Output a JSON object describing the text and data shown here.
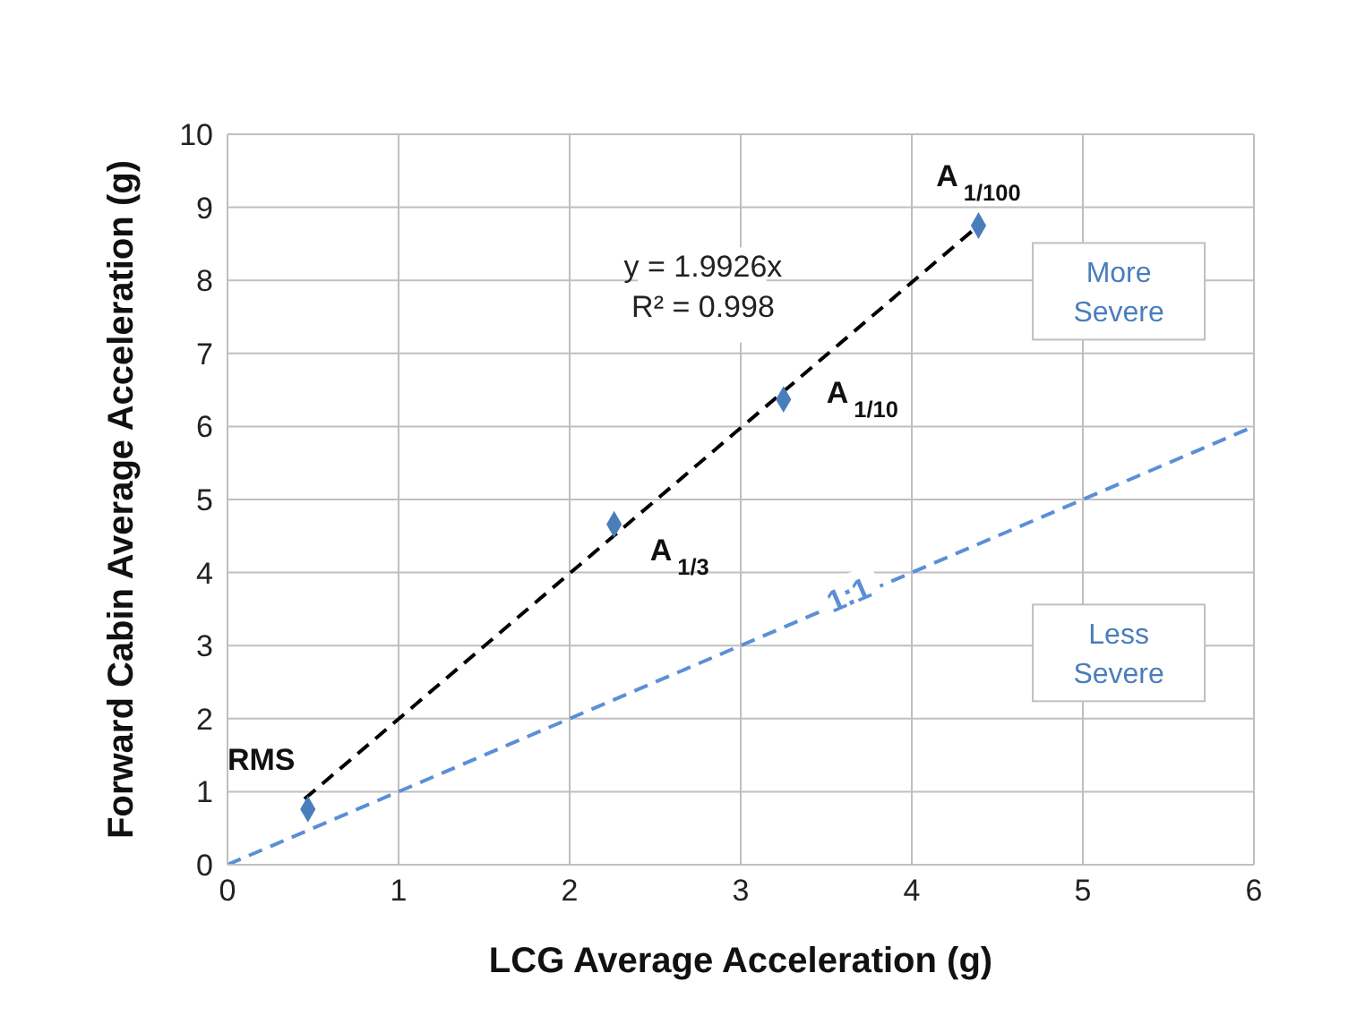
{
  "chart_data": {
    "type": "scatter",
    "xlabel": "LCG Average Acceleration (g)",
    "ylabel": "Forward Cabin Average Acceleration (g)",
    "xlim": [
      0,
      6
    ],
    "xticks": [
      0,
      1,
      2,
      3,
      4,
      5,
      6
    ],
    "ylim": [
      0,
      10
    ],
    "yticks": [
      0,
      1,
      2,
      3,
      4,
      5,
      6,
      7,
      8,
      9,
      10
    ],
    "grid": true,
    "legend": false,
    "marker": "diamond",
    "series": [
      {
        "color": "#4a7ebb",
        "x": [
          0.47,
          2.26,
          3.25,
          4.39
        ],
        "values": [
          0.76,
          4.66,
          6.37,
          8.75
        ]
      },
      {
        "type": "line",
        "color": "#000000",
        "line_style": "dashed",
        "marker": "none",
        "x": [
          0.45,
          4.4
        ],
        "values": [
          0.9,
          8.77
        ]
      },
      {
        "type": "line",
        "color": "#5b8fd6",
        "line_style": "dashed",
        "marker": "none",
        "x": [
          0,
          6
        ],
        "values": [
          0,
          6
        ]
      }
    ],
    "annotations": [
      {
        "text": "RMS",
        "x": 0.47,
        "y": 0.76
      },
      {
        "text": "A$_{1/3}$",
        "x": 2.26,
        "y": 4.66
      },
      {
        "text": "A$_{1/10}$",
        "x": 3.25,
        "y": 6.37
      },
      {
        "text": "A$_{1/100}$",
        "x": 4.39,
        "y": 8.75
      },
      "y = 1.9926x",
      "R² = 0.998",
      "1:1",
      "More Severe",
      "Less Severe"
    ]
  }
}
